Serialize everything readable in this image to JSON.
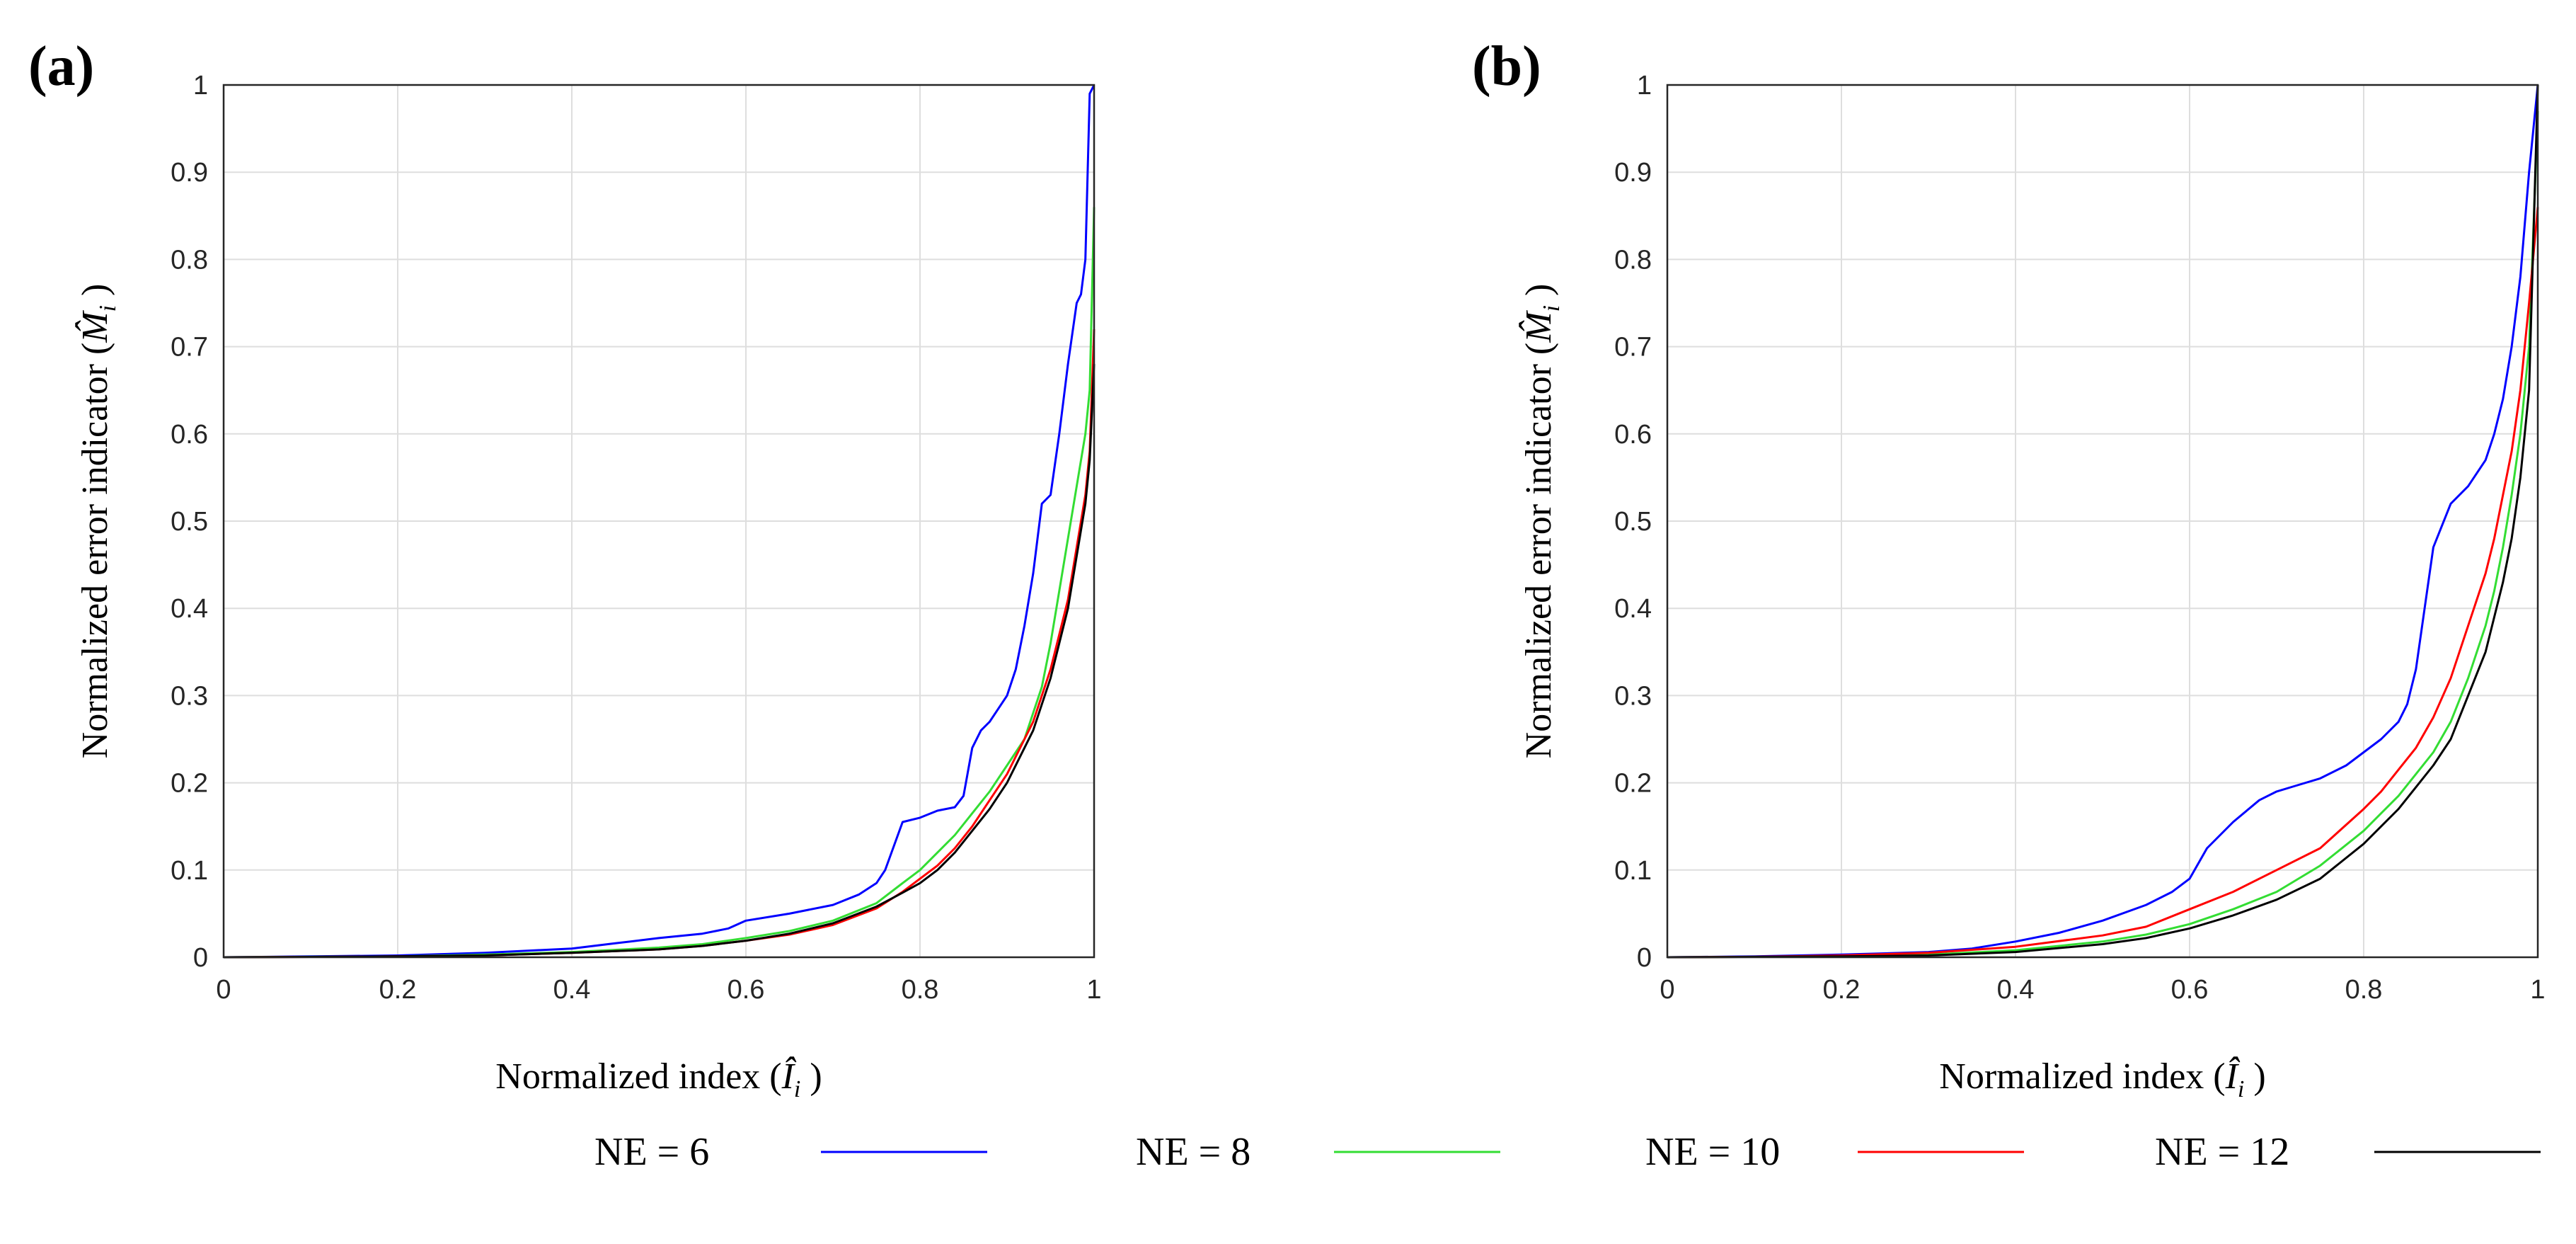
{
  "chart_data": [
    {
      "type": "line",
      "panel_label": "(a)",
      "xlabel": "Normalized index (",
      "xlabel_symbol": "Î",
      "xlabel_sub": "i",
      "ylabel": "Normalized error indicator (",
      "ylabel_symbol": "M̂",
      "ylabel_sub": "i",
      "xlim": [
        0,
        1
      ],
      "ylim": [
        0,
        1
      ],
      "xticks": [
        "0",
        "0.2",
        "0.4",
        "0.6",
        "0.8",
        "1"
      ],
      "yticks": [
        "0",
        "0.1",
        "0.2",
        "0.3",
        "0.4",
        "0.5",
        "0.6",
        "0.7",
        "0.8",
        "0.9",
        "1"
      ],
      "grid": true,
      "series": [
        {
          "name": "NE = 6",
          "color": "#0000ff",
          "x": [
            0,
            0.1,
            0.2,
            0.3,
            0.4,
            0.45,
            0.5,
            0.55,
            0.58,
            0.6,
            0.65,
            0.7,
            0.73,
            0.75,
            0.76,
            0.78,
            0.8,
            0.82,
            0.84,
            0.85,
            0.86,
            0.87,
            0.88,
            0.9,
            0.91,
            0.92,
            0.93,
            0.94,
            0.95,
            0.96,
            0.97,
            0.98,
            0.985,
            0.99,
            0.995,
            1.0
          ],
          "y": [
            0,
            0.001,
            0.002,
            0.005,
            0.01,
            0.016,
            0.022,
            0.027,
            0.033,
            0.042,
            0.05,
            0.06,
            0.072,
            0.085,
            0.1,
            0.155,
            0.16,
            0.168,
            0.172,
            0.185,
            0.24,
            0.26,
            0.27,
            0.3,
            0.33,
            0.38,
            0.44,
            0.52,
            0.53,
            0.6,
            0.68,
            0.75,
            0.76,
            0.8,
            0.99,
            1.0
          ]
        },
        {
          "name": "NE = 8",
          "color": "#33dd33",
          "x": [
            0,
            0.1,
            0.2,
            0.3,
            0.4,
            0.5,
            0.55,
            0.6,
            0.65,
            0.7,
            0.75,
            0.78,
            0.8,
            0.82,
            0.84,
            0.86,
            0.88,
            0.9,
            0.92,
            0.93,
            0.94,
            0.95,
            0.96,
            0.97,
            0.98,
            0.99,
            0.995,
            1.0
          ],
          "y": [
            0,
            0.0005,
            0.001,
            0.003,
            0.006,
            0.011,
            0.015,
            0.022,
            0.03,
            0.042,
            0.062,
            0.085,
            0.1,
            0.12,
            0.14,
            0.165,
            0.19,
            0.22,
            0.25,
            0.28,
            0.31,
            0.36,
            0.42,
            0.48,
            0.54,
            0.6,
            0.65,
            0.86
          ]
        },
        {
          "name": "NE = 10",
          "color": "#ff0000",
          "x": [
            0,
            0.1,
            0.2,
            0.3,
            0.4,
            0.5,
            0.55,
            0.6,
            0.65,
            0.7,
            0.75,
            0.78,
            0.8,
            0.82,
            0.84,
            0.86,
            0.88,
            0.9,
            0.92,
            0.93,
            0.94,
            0.95,
            0.96,
            0.97,
            0.98,
            0.99,
            0.995,
            1.0
          ],
          "y": [
            0,
            0.0004,
            0.001,
            0.002,
            0.005,
            0.009,
            0.013,
            0.019,
            0.026,
            0.037,
            0.056,
            0.075,
            0.09,
            0.105,
            0.125,
            0.15,
            0.18,
            0.21,
            0.25,
            0.27,
            0.3,
            0.33,
            0.37,
            0.41,
            0.47,
            0.53,
            0.58,
            0.72
          ]
        },
        {
          "name": "NE = 12",
          "color": "#000000",
          "x": [
            0,
            0.1,
            0.2,
            0.3,
            0.4,
            0.5,
            0.55,
            0.6,
            0.65,
            0.7,
            0.75,
            0.78,
            0.8,
            0.82,
            0.84,
            0.86,
            0.88,
            0.9,
            0.92,
            0.93,
            0.94,
            0.95,
            0.96,
            0.97,
            0.98,
            0.99,
            0.995,
            1.0
          ],
          "y": [
            0,
            0.0004,
            0.001,
            0.002,
            0.005,
            0.009,
            0.013,
            0.019,
            0.027,
            0.039,
            0.058,
            0.074,
            0.085,
            0.1,
            0.12,
            0.145,
            0.17,
            0.2,
            0.24,
            0.26,
            0.29,
            0.32,
            0.36,
            0.4,
            0.46,
            0.52,
            0.57,
            0.68
          ]
        }
      ]
    },
    {
      "type": "line",
      "panel_label": "(b)",
      "xlabel": "Normalized index (",
      "xlabel_symbol": "Î",
      "xlabel_sub": "i",
      "ylabel": "Normalized error indicator (",
      "ylabel_symbol": "M̂",
      "ylabel_sub": "i",
      "xlim": [
        0,
        1
      ],
      "ylim": [
        0,
        1
      ],
      "xticks": [
        "0",
        "0.2",
        "0.4",
        "0.6",
        "0.8",
        "1"
      ],
      "yticks": [
        "0",
        "0.1",
        "0.2",
        "0.3",
        "0.4",
        "0.5",
        "0.6",
        "0.7",
        "0.8",
        "0.9",
        "1"
      ],
      "grid": true,
      "series": [
        {
          "name": "NE = 6",
          "color": "#0000ff",
          "x": [
            0,
            0.1,
            0.2,
            0.3,
            0.35,
            0.4,
            0.45,
            0.5,
            0.55,
            0.58,
            0.6,
            0.62,
            0.65,
            0.68,
            0.7,
            0.72,
            0.75,
            0.78,
            0.8,
            0.82,
            0.84,
            0.85,
            0.86,
            0.87,
            0.88,
            0.9,
            0.92,
            0.94,
            0.95,
            0.96,
            0.97,
            0.98,
            0.99,
            1.0
          ],
          "y": [
            0,
            0.001,
            0.003,
            0.006,
            0.01,
            0.018,
            0.028,
            0.042,
            0.06,
            0.075,
            0.09,
            0.125,
            0.155,
            0.18,
            0.19,
            0.196,
            0.205,
            0.22,
            0.235,
            0.25,
            0.27,
            0.29,
            0.33,
            0.4,
            0.47,
            0.52,
            0.54,
            0.57,
            0.6,
            0.64,
            0.7,
            0.78,
            0.9,
            1.0
          ]
        },
        {
          "name": "NE = 8",
          "color": "#33dd33",
          "x": [
            0,
            0.1,
            0.2,
            0.3,
            0.4,
            0.5,
            0.55,
            0.6,
            0.65,
            0.7,
            0.75,
            0.8,
            0.82,
            0.84,
            0.86,
            0.88,
            0.9,
            0.92,
            0.94,
            0.95,
            0.96,
            0.97,
            0.98,
            0.99,
            1.0
          ],
          "y": [
            0,
            0.0005,
            0.001,
            0.003,
            0.008,
            0.018,
            0.026,
            0.038,
            0.055,
            0.075,
            0.105,
            0.145,
            0.165,
            0.185,
            0.21,
            0.235,
            0.27,
            0.32,
            0.38,
            0.42,
            0.47,
            0.53,
            0.6,
            0.7,
            0.97
          ]
        },
        {
          "name": "NE = 10",
          "color": "#ff0000",
          "x": [
            0,
            0.1,
            0.2,
            0.3,
            0.4,
            0.5,
            0.55,
            0.6,
            0.65,
            0.7,
            0.75,
            0.8,
            0.82,
            0.84,
            0.86,
            0.88,
            0.9,
            0.92,
            0.94,
            0.95,
            0.96,
            0.97,
            0.98,
            0.99,
            1.0
          ],
          "y": [
            0,
            0.0005,
            0.002,
            0.005,
            0.012,
            0.025,
            0.035,
            0.055,
            0.075,
            0.1,
            0.125,
            0.17,
            0.19,
            0.215,
            0.24,
            0.275,
            0.32,
            0.38,
            0.44,
            0.48,
            0.53,
            0.58,
            0.65,
            0.75,
            0.86
          ]
        },
        {
          "name": "NE = 12",
          "color": "#000000",
          "x": [
            0,
            0.1,
            0.2,
            0.3,
            0.4,
            0.5,
            0.55,
            0.6,
            0.65,
            0.7,
            0.75,
            0.8,
            0.82,
            0.84,
            0.86,
            0.88,
            0.9,
            0.92,
            0.94,
            0.95,
            0.96,
            0.97,
            0.98,
            0.99,
            1.0
          ],
          "y": [
            0,
            0.0004,
            0.001,
            0.002,
            0.006,
            0.015,
            0.022,
            0.033,
            0.048,
            0.066,
            0.09,
            0.13,
            0.15,
            0.17,
            0.195,
            0.22,
            0.25,
            0.3,
            0.35,
            0.39,
            0.43,
            0.48,
            0.55,
            0.65,
            1.0
          ]
        }
      ]
    }
  ],
  "legend": {
    "placement": "bottom-center",
    "entries": [
      {
        "label": "NE = 6",
        "color": "#0000ff"
      },
      {
        "label": "NE = 8",
        "color": "#33dd33"
      },
      {
        "label": "NE = 10",
        "color": "#ff0000"
      },
      {
        "label": "NE = 12",
        "color": "#000000"
      }
    ]
  }
}
